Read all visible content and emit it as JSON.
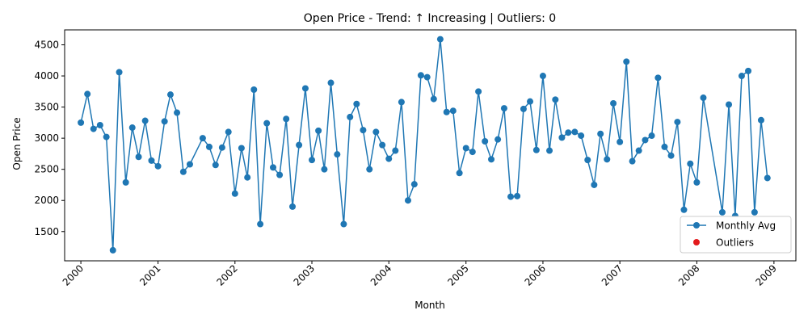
{
  "chart_data": {
    "type": "line",
    "title": "Open Price - Trend: ↑ Increasing | Outliers: 0",
    "xlabel": "Month",
    "ylabel": "Open Price",
    "xlim": [
      "1999-10-16",
      "2009-04-15"
    ],
    "ylim": [
      1030,
      4740
    ],
    "x_ticks": [
      "2000",
      "2001",
      "2002",
      "2003",
      "2004",
      "2005",
      "2006",
      "2007",
      "2008",
      "2009"
    ],
    "y_ticks": [
      1500,
      2000,
      2500,
      3000,
      3500,
      4000,
      4500
    ],
    "grid": false,
    "legend_position": "lower-right",
    "series": [
      {
        "name": "Monthly Avg",
        "color": "#1f77b4",
        "marker": "circle",
        "points": [
          [
            "2000-01",
            3250
          ],
          [
            "2000-02",
            3710
          ],
          [
            "2000-03",
            3150
          ],
          [
            "2000-04",
            3210
          ],
          [
            "2000-05",
            3020
          ],
          [
            "2000-06",
            1200
          ],
          [
            "2000-07",
            4060
          ],
          [
            "2000-08",
            2290
          ],
          [
            "2000-09",
            3170
          ],
          [
            "2000-10",
            2700
          ],
          [
            "2000-11",
            3280
          ],
          [
            "2000-12",
            2640
          ],
          [
            "2001-01",
            2550
          ],
          [
            "2001-02",
            3270
          ],
          [
            "2001-03",
            3700
          ],
          [
            "2001-04",
            3410
          ],
          [
            "2001-05",
            2460
          ],
          [
            "2001-06",
            2580
          ],
          [
            "2001-08",
            3000
          ],
          [
            "2001-09",
            2860
          ],
          [
            "2001-10",
            2570
          ],
          [
            "2001-11",
            2850
          ],
          [
            "2001-12",
            3100
          ],
          [
            "2002-01",
            2110
          ],
          [
            "2002-02",
            2840
          ],
          [
            "2002-03",
            2370
          ],
          [
            "2002-04",
            3780
          ],
          [
            "2002-05",
            1620
          ],
          [
            "2002-06",
            3240
          ],
          [
            "2002-07",
            2530
          ],
          [
            "2002-08",
            2410
          ],
          [
            "2002-09",
            3310
          ],
          [
            "2002-10",
            1900
          ],
          [
            "2002-11",
            2890
          ],
          [
            "2002-12",
            3800
          ],
          [
            "2003-01",
            2650
          ],
          [
            "2003-02",
            3120
          ],
          [
            "2003-03",
            2500
          ],
          [
            "2003-04",
            3890
          ],
          [
            "2003-05",
            2740
          ],
          [
            "2003-06",
            1620
          ],
          [
            "2003-07",
            3340
          ],
          [
            "2003-08",
            3550
          ],
          [
            "2003-09",
            3130
          ],
          [
            "2003-10",
            2500
          ],
          [
            "2003-11",
            3100
          ],
          [
            "2003-12",
            2890
          ],
          [
            "2004-01",
            2670
          ],
          [
            "2004-02",
            2800
          ],
          [
            "2004-03",
            3580
          ],
          [
            "2004-04",
            2000
          ],
          [
            "2004-05",
            2260
          ],
          [
            "2004-06",
            4010
          ],
          [
            "2004-07",
            3980
          ],
          [
            "2004-08",
            3630
          ],
          [
            "2004-09",
            4590
          ],
          [
            "2004-10",
            3420
          ],
          [
            "2004-11",
            3440
          ],
          [
            "2004-12",
            2440
          ],
          [
            "2005-01",
            2840
          ],
          [
            "2005-02",
            2780
          ],
          [
            "2005-03",
            3750
          ],
          [
            "2005-04",
            2950
          ],
          [
            "2005-05",
            2660
          ],
          [
            "2005-06",
            2980
          ],
          [
            "2005-07",
            3480
          ],
          [
            "2005-08",
            2060
          ],
          [
            "2005-09",
            2070
          ],
          [
            "2005-10",
            3470
          ],
          [
            "2005-11",
            3590
          ],
          [
            "2005-12",
            2810
          ],
          [
            "2006-01",
            4000
          ],
          [
            "2006-02",
            2800
          ],
          [
            "2006-03",
            3620
          ],
          [
            "2006-04",
            3010
          ],
          [
            "2006-05",
            3090
          ],
          [
            "2006-06",
            3100
          ],
          [
            "2006-07",
            3040
          ],
          [
            "2006-08",
            2650
          ],
          [
            "2006-09",
            2250
          ],
          [
            "2006-10",
            3070
          ],
          [
            "2006-11",
            2660
          ],
          [
            "2006-12",
            3560
          ],
          [
            "2007-01",
            2940
          ],
          [
            "2007-02",
            4230
          ],
          [
            "2007-03",
            2630
          ],
          [
            "2007-04",
            2800
          ],
          [
            "2007-05",
            2970
          ],
          [
            "2007-06",
            3040
          ],
          [
            "2007-07",
            3970
          ],
          [
            "2007-08",
            2860
          ],
          [
            "2007-09",
            2720
          ],
          [
            "2007-10",
            3260
          ],
          [
            "2007-11",
            1850
          ],
          [
            "2007-12",
            2590
          ],
          [
            "2008-01",
            2290
          ],
          [
            "2008-02",
            3650
          ],
          [
            "2008-05",
            1810
          ],
          [
            "2008-06",
            3540
          ],
          [
            "2008-07",
            1750
          ],
          [
            "2008-08",
            4000
          ],
          [
            "2008-09",
            4080
          ],
          [
            "2008-10",
            1810
          ],
          [
            "2008-11",
            3290
          ],
          [
            "2008-12",
            2360
          ]
        ]
      },
      {
        "name": "Outliers",
        "color": "#e31a1c",
        "marker": "circle",
        "points": []
      }
    ]
  }
}
